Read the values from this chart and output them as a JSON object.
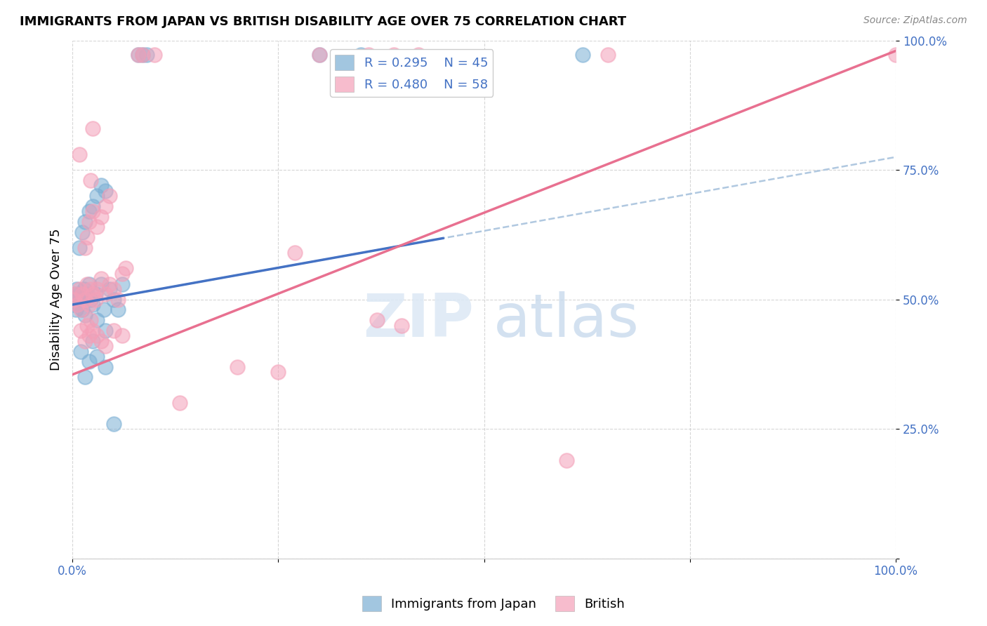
{
  "title": "IMMIGRANTS FROM JAPAN VS BRITISH DISABILITY AGE OVER 75 CORRELATION CHART",
  "source": "Source: ZipAtlas.com",
  "ylabel": "Disability Age Over 75",
  "legend_japan": {
    "R": 0.295,
    "N": 45
  },
  "legend_british": {
    "R": 0.48,
    "N": 58
  },
  "japan_color": "#7bafd4",
  "british_color": "#f4a0b8",
  "japan_line_color": "#4472c4",
  "british_line_color": "#e87090",
  "japan_dashed_color": "#b0c8e0",
  "japan_intercept": 0.49,
  "japan_slope": 0.285,
  "british_intercept": 0.355,
  "british_slope": 0.625,
  "japan_points": [
    [
      0.002,
      0.49
    ],
    [
      0.003,
      0.51
    ],
    [
      0.004,
      0.48
    ],
    [
      0.005,
      0.52
    ],
    [
      0.006,
      0.5
    ],
    [
      0.007,
      0.49
    ],
    [
      0.008,
      0.51
    ],
    [
      0.01,
      0.5
    ],
    [
      0.012,
      0.48
    ],
    [
      0.014,
      0.52
    ],
    [
      0.015,
      0.47
    ],
    [
      0.018,
      0.51
    ],
    [
      0.02,
      0.53
    ],
    [
      0.022,
      0.5
    ],
    [
      0.025,
      0.49
    ],
    [
      0.028,
      0.51
    ],
    [
      0.03,
      0.46
    ],
    [
      0.035,
      0.53
    ],
    [
      0.038,
      0.48
    ],
    [
      0.04,
      0.44
    ],
    [
      0.045,
      0.52
    ],
    [
      0.05,
      0.5
    ],
    [
      0.055,
      0.48
    ],
    [
      0.06,
      0.53
    ],
    [
      0.008,
      0.6
    ],
    [
      0.012,
      0.63
    ],
    [
      0.015,
      0.65
    ],
    [
      0.02,
      0.67
    ],
    [
      0.025,
      0.68
    ],
    [
      0.03,
      0.7
    ],
    [
      0.035,
      0.72
    ],
    [
      0.04,
      0.71
    ],
    [
      0.01,
      0.4
    ],
    [
      0.015,
      0.35
    ],
    [
      0.02,
      0.38
    ],
    [
      0.025,
      0.42
    ],
    [
      0.03,
      0.39
    ],
    [
      0.04,
      0.37
    ],
    [
      0.05,
      0.26
    ],
    [
      0.08,
      0.972
    ],
    [
      0.085,
      0.972
    ],
    [
      0.09,
      0.972
    ],
    [
      0.3,
      0.972
    ],
    [
      0.35,
      0.972
    ],
    [
      0.62,
      0.972
    ]
  ],
  "british_points": [
    [
      0.002,
      0.5
    ],
    [
      0.004,
      0.51
    ],
    [
      0.006,
      0.49
    ],
    [
      0.008,
      0.52
    ],
    [
      0.01,
      0.48
    ],
    [
      0.012,
      0.51
    ],
    [
      0.015,
      0.5
    ],
    [
      0.018,
      0.53
    ],
    [
      0.02,
      0.49
    ],
    [
      0.022,
      0.52
    ],
    [
      0.025,
      0.51
    ],
    [
      0.028,
      0.5
    ],
    [
      0.03,
      0.52
    ],
    [
      0.035,
      0.54
    ],
    [
      0.04,
      0.51
    ],
    [
      0.045,
      0.53
    ],
    [
      0.05,
      0.52
    ],
    [
      0.055,
      0.5
    ],
    [
      0.06,
      0.55
    ],
    [
      0.065,
      0.56
    ],
    [
      0.015,
      0.6
    ],
    [
      0.018,
      0.62
    ],
    [
      0.02,
      0.65
    ],
    [
      0.025,
      0.67
    ],
    [
      0.03,
      0.64
    ],
    [
      0.035,
      0.66
    ],
    [
      0.04,
      0.68
    ],
    [
      0.045,
      0.7
    ],
    [
      0.01,
      0.44
    ],
    [
      0.015,
      0.42
    ],
    [
      0.018,
      0.45
    ],
    [
      0.02,
      0.43
    ],
    [
      0.022,
      0.46
    ],
    [
      0.025,
      0.44
    ],
    [
      0.03,
      0.43
    ],
    [
      0.035,
      0.42
    ],
    [
      0.04,
      0.41
    ],
    [
      0.05,
      0.44
    ],
    [
      0.06,
      0.43
    ],
    [
      0.008,
      0.78
    ],
    [
      0.025,
      0.83
    ],
    [
      0.022,
      0.73
    ],
    [
      0.27,
      0.59
    ],
    [
      0.37,
      0.46
    ],
    [
      0.4,
      0.45
    ],
    [
      0.25,
      0.36
    ],
    [
      0.6,
      0.19
    ],
    [
      0.08,
      0.972
    ],
    [
      0.085,
      0.972
    ],
    [
      0.1,
      0.972
    ],
    [
      0.3,
      0.972
    ],
    [
      0.36,
      0.972
    ],
    [
      0.39,
      0.972
    ],
    [
      0.42,
      0.972
    ],
    [
      0.65,
      0.972
    ],
    [
      1.0,
      0.972
    ],
    [
      0.13,
      0.3
    ],
    [
      0.2,
      0.37
    ]
  ]
}
